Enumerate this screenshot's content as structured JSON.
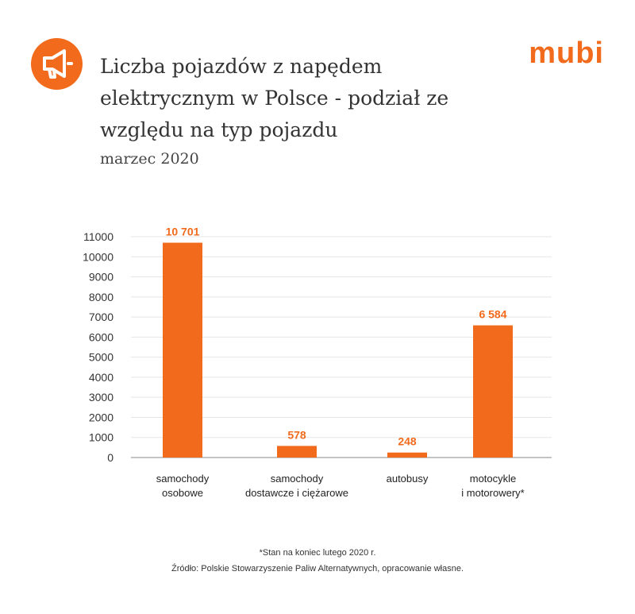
{
  "header": {
    "title": "Liczba pojazdów z napędem elektrycznym w Polsce - podział ze względu na typ pojazdu",
    "subtitle": "marzec 2020",
    "brand": "mubi",
    "icon": "megaphone-icon"
  },
  "colors": {
    "accent": "#f26a1b",
    "label": "#f26a1b",
    "grid": "#e5e5e5",
    "axis": "#888888"
  },
  "chart_data": {
    "type": "bar",
    "categories": [
      [
        "samochody",
        "osobowe"
      ],
      [
        "samochody",
        "dostawcze i ciężarowe"
      ],
      [
        "autobusy"
      ],
      [
        "motocykle",
        "i motorowery*"
      ]
    ],
    "values": [
      10701,
      578,
      248,
      6584
    ],
    "data_labels": [
      "10 701",
      "578",
      "248",
      "6 584"
    ],
    "ylim": [
      0,
      11000
    ],
    "yticks": [
      0,
      1000,
      2000,
      3000,
      4000,
      5000,
      6000,
      7000,
      8000,
      9000,
      10000,
      11000
    ],
    "grid": true,
    "xlabel": "",
    "ylabel": ""
  },
  "footer": {
    "note": "*Stan na koniec lutego 2020 r.",
    "source": "Źródło: Polskie Stowarzyszenie Paliw Alternatywnych, opracowanie własne."
  }
}
